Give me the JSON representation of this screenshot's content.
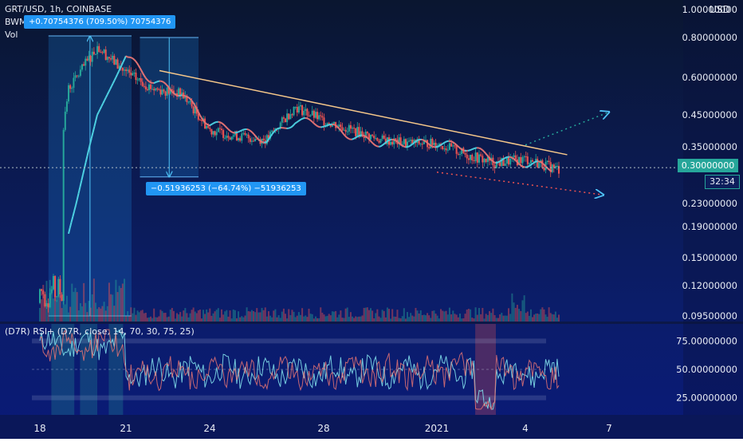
{
  "header": {
    "symbol_line": "GRT/USD, 1h, COINBASE",
    "indicator_line": "BWMA (30, 3, 0, close)",
    "vol_label": "Vol",
    "rsi_label": "(D7R) RSI+ (D7R, close, 14, 70, 30, 75, 25)"
  },
  "annotations": {
    "rise_label": "+0.70754376 (709.50%) 70754376",
    "drop_label": "−0.51936253 (−64.74%) −51936253"
  },
  "price_axis": {
    "currency": "USD",
    "ticks": [
      "1.00000000",
      "0.80000000",
      "0.60000000",
      "0.45000000",
      "0.35000000",
      "0.23000000",
      "0.19000000",
      "0.15000000",
      "0.12000000",
      "0.09500000"
    ],
    "current_price": "0.30000000",
    "countdown": "32:34"
  },
  "rsi_axis": {
    "ticks": [
      "75.00000000",
      "50.00000000",
      "25.00000000"
    ]
  },
  "time_axis": {
    "ticks": [
      "18",
      "21",
      "24",
      "28",
      "2021",
      "4",
      "7"
    ]
  },
  "colors": {
    "background_top": "#0a1630",
    "background_bottom": "#0a1a78",
    "bull": "#26a69a",
    "bear": "#ef5350",
    "bwma_up": "#4dd0e1",
    "bwma_down": "#e57373",
    "trendline": "#f5c78a",
    "measure_box": "#2196f3"
  },
  "chart_data": {
    "type": "candlestick",
    "pair": "GRT/USD",
    "interval": "1h",
    "exchange": "COINBASE",
    "price_scale": "log",
    "price_range": [
      0.095,
      1.0
    ],
    "x": [
      "18",
      "19",
      "20",
      "21",
      "22",
      "23",
      "24",
      "25",
      "26",
      "27",
      "28",
      "29",
      "30",
      "31",
      "2021",
      "2",
      "3",
      "4",
      "5"
    ],
    "close_approx": [
      0.11,
      0.55,
      0.75,
      0.62,
      0.55,
      0.53,
      0.4,
      0.38,
      0.37,
      0.48,
      0.43,
      0.4,
      0.37,
      0.36,
      0.36,
      0.33,
      0.31,
      0.32,
      0.3
    ],
    "bwma_approx": [
      null,
      0.18,
      0.45,
      0.7,
      0.58,
      0.53,
      0.42,
      0.4,
      0.37,
      0.43,
      0.42,
      0.38,
      0.36,
      0.36,
      0.36,
      0.35,
      0.32,
      0.31,
      0.3
    ],
    "measurements": [
      {
        "change": 0.70754376,
        "percent": 709.5
      },
      {
        "change": -0.51936253,
        "percent": -64.74
      }
    ],
    "last_price": 0.3,
    "rsi": {
      "length": 14,
      "overbought": 70,
      "oversold": 30,
      "upper": 75,
      "lower": 25,
      "range": [
        10,
        90
      ]
    }
  }
}
